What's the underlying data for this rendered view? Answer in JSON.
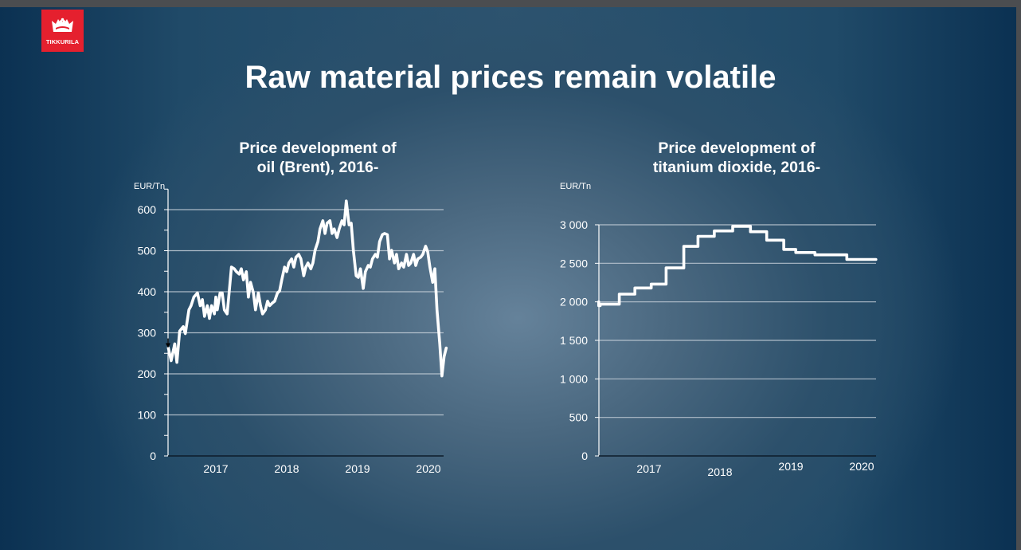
{
  "slide": {
    "logo_text": "TIKKURILA",
    "title": "Raw material prices remain volatile",
    "colors": {
      "brand_red": "#e5202e",
      "line": "#ffffff",
      "grid": "#c9d2da"
    }
  },
  "chart_data": [
    {
      "type": "line",
      "title_line1": "Price development of",
      "title_line2": "oil (Brent), 2016-",
      "ylabel": "EUR/Tn",
      "xlabel": "",
      "ylim": [
        0,
        650
      ],
      "xlim": [
        2016.33,
        2020.25
      ],
      "yticks": [
        0,
        100,
        200,
        300,
        400,
        500,
        600
      ],
      "ytick_labels": [
        "0",
        "100",
        "200",
        "300",
        "400",
        "500",
        "600"
      ],
      "xticks": [
        2017,
        2018,
        2019,
        2020
      ],
      "xtick_labels": [
        "2017",
        "2018",
        "2019",
        "2020"
      ],
      "grid": true,
      "series": [
        {
          "name": "Brent oil",
          "points": [
            [
              2016.33,
              263
            ],
            [
              2016.37,
              232
            ],
            [
              2016.42,
              273
            ],
            [
              2016.45,
              228
            ],
            [
              2016.49,
              304
            ],
            [
              2016.54,
              315
            ],
            [
              2016.57,
              298
            ],
            [
              2016.62,
              356
            ],
            [
              2016.65,
              366
            ],
            [
              2016.69,
              387
            ],
            [
              2016.74,
              397
            ],
            [
              2016.78,
              366
            ],
            [
              2016.81,
              381
            ],
            [
              2016.84,
              340
            ],
            [
              2016.88,
              366
            ],
            [
              2016.91,
              335
            ],
            [
              2016.94,
              366
            ],
            [
              2016.98,
              346
            ],
            [
              2017.0,
              387
            ],
            [
              2017.02,
              356
            ],
            [
              2017.06,
              397
            ],
            [
              2017.09,
              397
            ],
            [
              2017.12,
              356
            ],
            [
              2017.16,
              346
            ],
            [
              2017.19,
              402
            ],
            [
              2017.22,
              460
            ],
            [
              2017.26,
              456
            ],
            [
              2017.29,
              449
            ],
            [
              2017.33,
              443
            ],
            [
              2017.36,
              456
            ],
            [
              2017.39,
              429
            ],
            [
              2017.43,
              449
            ],
            [
              2017.46,
              387
            ],
            [
              2017.49,
              423
            ],
            [
              2017.53,
              397
            ],
            [
              2017.56,
              356
            ],
            [
              2017.6,
              397
            ],
            [
              2017.63,
              366
            ],
            [
              2017.66,
              346
            ],
            [
              2017.7,
              356
            ],
            [
              2017.73,
              377
            ],
            [
              2017.76,
              366
            ],
            [
              2017.8,
              373
            ],
            [
              2017.83,
              377
            ],
            [
              2017.87,
              397
            ],
            [
              2017.9,
              402
            ],
            [
              2017.93,
              429
            ],
            [
              2017.97,
              460
            ],
            [
              2018.0,
              449
            ],
            [
              2018.03,
              470
            ],
            [
              2018.07,
              480
            ],
            [
              2018.1,
              460
            ],
            [
              2018.13,
              484
            ],
            [
              2018.17,
              491
            ],
            [
              2018.2,
              480
            ],
            [
              2018.24,
              439
            ],
            [
              2018.27,
              460
            ],
            [
              2018.3,
              470
            ],
            [
              2018.34,
              456
            ],
            [
              2018.37,
              470
            ],
            [
              2018.4,
              501
            ],
            [
              2018.44,
              522
            ],
            [
              2018.47,
              553
            ],
            [
              2018.51,
              573
            ],
            [
              2018.54,
              542
            ],
            [
              2018.57,
              567
            ],
            [
              2018.61,
              573
            ],
            [
              2018.64,
              542
            ],
            [
              2018.67,
              553
            ],
            [
              2018.71,
              532
            ],
            [
              2018.74,
              553
            ],
            [
              2018.78,
              573
            ],
            [
              2018.81,
              563
            ],
            [
              2018.84,
              621
            ],
            [
              2018.88,
              563
            ],
            [
              2018.91,
              567
            ],
            [
              2018.94,
              501
            ],
            [
              2018.98,
              439
            ],
            [
              2019.01,
              435
            ],
            [
              2019.04,
              456
            ],
            [
              2019.08,
              408
            ],
            [
              2019.11,
              449
            ],
            [
              2019.15,
              464
            ],
            [
              2019.18,
              460
            ],
            [
              2019.21,
              480
            ],
            [
              2019.25,
              491
            ],
            [
              2019.28,
              484
            ],
            [
              2019.31,
              522
            ],
            [
              2019.35,
              539
            ],
            [
              2019.38,
              542
            ],
            [
              2019.42,
              539
            ],
            [
              2019.45,
              480
            ],
            [
              2019.48,
              501
            ],
            [
              2019.52,
              470
            ],
            [
              2019.55,
              491
            ],
            [
              2019.58,
              456
            ],
            [
              2019.62,
              470
            ],
            [
              2019.65,
              460
            ],
            [
              2019.69,
              491
            ],
            [
              2019.72,
              464
            ],
            [
              2019.75,
              470
            ],
            [
              2019.79,
              491
            ],
            [
              2019.82,
              464
            ],
            [
              2019.85,
              480
            ],
            [
              2019.89,
              484
            ],
            [
              2019.92,
              491
            ],
            [
              2019.96,
              511
            ],
            [
              2019.99,
              497
            ],
            [
              2020.02,
              460
            ],
            [
              2020.06,
              423
            ],
            [
              2020.09,
              456
            ],
            [
              2020.12,
              356
            ],
            [
              2020.16,
              273
            ],
            [
              2020.19,
              195
            ],
            [
              2020.22,
              242
            ],
            [
              2020.25,
              263
            ]
          ]
        }
      ]
    },
    {
      "type": "line",
      "title_line1": "Price development of",
      "title_line2": "titanium dioxide, 2016-",
      "ylabel": "EUR/Tn",
      "xlabel": "",
      "ylim": [
        0,
        3000
      ],
      "xlim": [
        2016.29,
        2020.2
      ],
      "yticks": [
        0,
        500,
        1000,
        1500,
        2000,
        2500,
        3000
      ],
      "ytick_labels": [
        "0",
        "500",
        "1 000",
        "1 500",
        "2 000",
        "2 500",
        "3 000"
      ],
      "xticks": [
        2017,
        2018,
        2019,
        2020
      ],
      "xtick_labels": [
        "2017",
        "2018",
        "2019",
        "2020"
      ],
      "grid": true,
      "series": [
        {
          "name": "Titanium dioxide",
          "step": true,
          "points": [
            [
              2016.29,
              2000
            ],
            [
              2016.31,
              1950
            ],
            [
              2016.58,
              1970
            ],
            [
              2016.8,
              2100
            ],
            [
              2017.03,
              2180
            ],
            [
              2017.24,
              2230
            ],
            [
              2017.49,
              2440
            ],
            [
              2017.69,
              2720
            ],
            [
              2017.92,
              2850
            ],
            [
              2018.18,
              2920
            ],
            [
              2018.43,
              2980
            ],
            [
              2018.66,
              2910
            ],
            [
              2018.9,
              2800
            ],
            [
              2019.07,
              2680
            ],
            [
              2019.34,
              2640
            ],
            [
              2019.79,
              2610
            ],
            [
              2019.99,
              2550
            ],
            [
              2020.2,
              2550
            ]
          ]
        }
      ]
    }
  ]
}
